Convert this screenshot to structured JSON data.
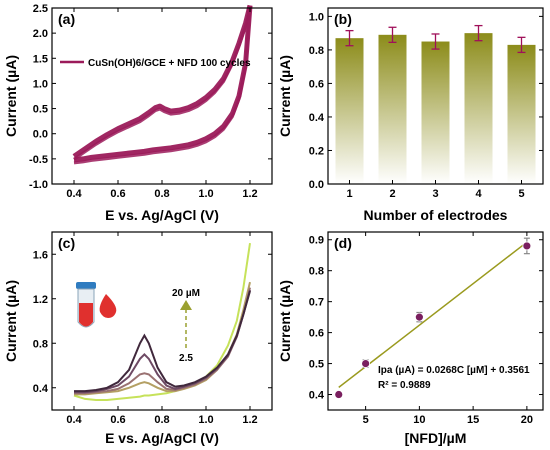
{
  "colors": {
    "cv_curve": "#9b1b5a",
    "bar_top": "#8c8c1a",
    "bar_bottom": "#ffffff",
    "error_bar": "#a0105a",
    "fit_line": "#9a9a1e",
    "marker": "#7a1f5f",
    "dpv_lines": [
      "#c6e25a",
      "#b4a064",
      "#9a7272",
      "#6e4a64",
      "#40283c"
    ],
    "arrow": "#9aa030",
    "arrow_label": "#8a1050",
    "tube_cap": "#2f7cc0",
    "tube_liquid": "#e0302e",
    "drop": "#e0302e"
  },
  "chart_data": [
    {
      "panel_label": "(a)",
      "type": "line",
      "xlabel": "E vs. Ag/AgCl (V)",
      "ylabel": "Current (µA)",
      "xlim": [
        0.3,
        1.3
      ],
      "ylim": [
        -1.0,
        2.5
      ],
      "xticks": [
        "0.4",
        "0.6",
        "0.8",
        "1.0",
        "1.2"
      ],
      "yticks": [
        "-1.0",
        "-0.5",
        "0.0",
        "0.5",
        "1.0",
        "1.5",
        "2.0",
        "2.5"
      ],
      "legend": "CuSn(OH)6/GCE + NFD 100 cycles",
      "legend_position": "top-left",
      "series": [
        {
          "x": [
            0.4,
            0.45,
            0.5,
            0.55,
            0.6,
            0.65,
            0.7,
            0.74,
            0.77,
            0.79,
            0.81,
            0.84,
            0.88,
            0.92,
            0.96,
            1.0,
            1.04,
            1.08,
            1.12,
            1.15,
            1.18,
            1.2
          ],
          "y": [
            -0.45,
            -0.3,
            -0.15,
            -0.02,
            0.1,
            0.2,
            0.3,
            0.42,
            0.52,
            0.55,
            0.5,
            0.45,
            0.47,
            0.52,
            0.6,
            0.72,
            0.88,
            1.1,
            1.45,
            1.8,
            2.2,
            2.55
          ]
        },
        {
          "x": [
            1.2,
            1.18,
            1.15,
            1.12,
            1.08,
            1.04,
            1.0,
            0.96,
            0.92,
            0.88,
            0.84,
            0.8,
            0.76,
            0.72,
            0.68,
            0.64,
            0.6,
            0.56,
            0.52,
            0.48,
            0.44,
            0.4
          ],
          "y": [
            2.55,
            1.4,
            0.75,
            0.4,
            0.15,
            0.0,
            -0.1,
            -0.17,
            -0.22,
            -0.25,
            -0.28,
            -0.3,
            -0.32,
            -0.35,
            -0.37,
            -0.39,
            -0.41,
            -0.43,
            -0.45,
            -0.47,
            -0.5,
            -0.52
          ]
        }
      ]
    },
    {
      "panel_label": "(b)",
      "type": "bar",
      "xlabel": "Number of electrodes",
      "ylabel": "Current (µA)",
      "categories": [
        "1",
        "2",
        "3",
        "4",
        "5"
      ],
      "values": [
        0.87,
        0.89,
        0.85,
        0.9,
        0.83
      ],
      "errors": [
        0.045,
        0.045,
        0.045,
        0.045,
        0.045
      ],
      "ylim": [
        0.0,
        1.05
      ],
      "yticks": [
        "0.0",
        "0.2",
        "0.4",
        "0.6",
        "0.8",
        "1.0"
      ]
    },
    {
      "panel_label": "(c)",
      "type": "line",
      "xlabel": "E vs. Ag/AgCl (V)",
      "ylabel": "Current (µA)",
      "xlim": [
        0.3,
        1.3
      ],
      "ylim": [
        0.2,
        1.8
      ],
      "xticks": [
        "0.4",
        "0.6",
        "0.8",
        "1.0",
        "1.2"
      ],
      "yticks": [
        "0.4",
        "0.8",
        "1.2",
        "1.6"
      ],
      "arrow_top_label": "20 µM",
      "arrow_bottom_label": "2.5",
      "x": [
        0.4,
        0.45,
        0.5,
        0.55,
        0.6,
        0.65,
        0.7,
        0.72,
        0.74,
        0.78,
        0.82,
        0.86,
        0.9,
        0.95,
        1.0,
        1.05,
        1.1,
        1.14,
        1.17,
        1.2
      ],
      "series": [
        {
          "values": [
            0.33,
            0.3,
            0.29,
            0.29,
            0.3,
            0.31,
            0.32,
            0.33,
            0.33,
            0.34,
            0.35,
            0.37,
            0.4,
            0.44,
            0.5,
            0.6,
            0.78,
            1.0,
            1.3,
            1.7
          ]
        },
        {
          "values": [
            0.34,
            0.34,
            0.35,
            0.36,
            0.37,
            0.4,
            0.44,
            0.45,
            0.44,
            0.4,
            0.37,
            0.37,
            0.39,
            0.42,
            0.47,
            0.56,
            0.7,
            0.88,
            1.1,
            1.35
          ]
        },
        {
          "values": [
            0.35,
            0.35,
            0.36,
            0.37,
            0.39,
            0.44,
            0.52,
            0.53,
            0.52,
            0.45,
            0.39,
            0.38,
            0.4,
            0.43,
            0.48,
            0.56,
            0.68,
            0.86,
            1.06,
            1.3
          ]
        },
        {
          "values": [
            0.36,
            0.36,
            0.37,
            0.39,
            0.42,
            0.5,
            0.66,
            0.7,
            0.66,
            0.52,
            0.42,
            0.39,
            0.41,
            0.44,
            0.49,
            0.57,
            0.69,
            0.86,
            1.06,
            1.28
          ]
        },
        {
          "values": [
            0.37,
            0.37,
            0.38,
            0.4,
            0.45,
            0.56,
            0.8,
            0.87,
            0.8,
            0.58,
            0.45,
            0.41,
            0.42,
            0.45,
            0.5,
            0.58,
            0.7,
            0.87,
            1.06,
            1.27
          ]
        }
      ]
    },
    {
      "panel_label": "(d)",
      "type": "scatter",
      "xlabel": "[NFD]/µM",
      "ylabel": "Current (µA)",
      "xlim": [
        1.5,
        21.5
      ],
      "ylim": [
        0.35,
        0.925
      ],
      "xticks": [
        "5",
        "10",
        "15",
        "20"
      ],
      "yticks": [
        "0.4",
        "0.5",
        "0.6",
        "0.7",
        "0.8",
        "0.9"
      ],
      "x": [
        2.5,
        5,
        10,
        20
      ],
      "y": [
        0.4,
        0.5,
        0.65,
        0.88
      ],
      "errors": [
        0.0,
        0.012,
        0.015,
        0.025
      ],
      "fit": {
        "slope": 0.0268,
        "intercept": 0.3561,
        "x_range": [
          2.5,
          20
        ]
      },
      "equation": "Ipa (µA) = 0.0268C [µM] + 0.3561",
      "r_squared": "R² = 0.9889"
    }
  ]
}
